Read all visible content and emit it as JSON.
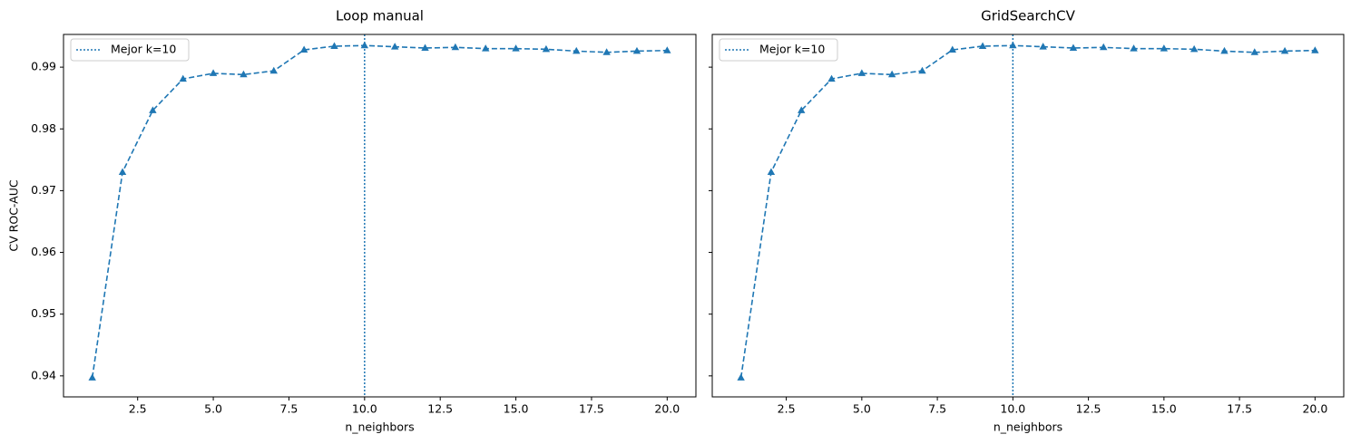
{
  "chart_data": [
    {
      "type": "line",
      "title": "Loop manual",
      "x_label": "n_neighbors",
      "y_label": "CV ROC-AUC",
      "x": [
        1,
        2,
        3,
        4,
        5,
        6,
        7,
        8,
        9,
        10,
        11,
        12,
        13,
        14,
        15,
        16,
        17,
        18,
        19,
        20
      ],
      "values": [
        0.9397,
        0.973,
        0.983,
        0.9881,
        0.989,
        0.9888,
        0.9894,
        0.9928,
        0.9934,
        0.9935,
        0.9933,
        0.9931,
        0.9932,
        0.993,
        0.993,
        0.9929,
        0.9926,
        0.9924,
        0.9926,
        0.9927
      ],
      "color": "#1f77b4",
      "marker": "triangle",
      "line_style": "dashed",
      "xlim": [
        0.05,
        20.95
      ],
      "ylim": [
        0.9366,
        0.9953
      ],
      "xticks": [
        2.5,
        {
          "value": 5,
          "label": "5.0"
        },
        7.5,
        {
          "value": 10,
          "label": "10.0"
        },
        12.5,
        {
          "value": 15,
          "label": "15.0"
        },
        17.5,
        {
          "value": 20,
          "label": "20.0"
        }
      ],
      "yticks": [
        0.94,
        0.95,
        0.96,
        0.97,
        0.98,
        0.99
      ],
      "show_ytick_labels": true,
      "vline": {
        "x": 10,
        "label": "Mejor k=10",
        "color": "#1f77b4",
        "line_style": "dotted"
      },
      "legend_position": "upper left"
    },
    {
      "type": "line",
      "title": "GridSearchCV",
      "x_label": "n_neighbors",
      "x": [
        1,
        2,
        3,
        4,
        5,
        6,
        7,
        8,
        9,
        10,
        11,
        12,
        13,
        14,
        15,
        16,
        17,
        18,
        19,
        20
      ],
      "values": [
        0.9397,
        0.973,
        0.983,
        0.9881,
        0.989,
        0.9888,
        0.9894,
        0.9928,
        0.9934,
        0.9935,
        0.9933,
        0.9931,
        0.9932,
        0.993,
        0.993,
        0.9929,
        0.9926,
        0.9924,
        0.9926,
        0.9927
      ],
      "color": "#1f77b4",
      "marker": "triangle",
      "line_style": "dashed",
      "xlim": [
        0.05,
        20.95
      ],
      "ylim": [
        0.9366,
        0.9953
      ],
      "xticks": [
        2.5,
        {
          "value": 5,
          "label": "5.0"
        },
        7.5,
        {
          "value": 10,
          "label": "10.0"
        },
        12.5,
        {
          "value": 15,
          "label": "15.0"
        },
        17.5,
        {
          "value": 20,
          "label": "20.0"
        }
      ],
      "yticks": [
        0.94,
        0.95,
        0.96,
        0.97,
        0.98,
        0.99
      ],
      "show_ytick_labels": false,
      "vline": {
        "x": 10,
        "label": "Mejor k=10",
        "color": "#1f77b4",
        "line_style": "dotted"
      },
      "legend_position": "upper left"
    }
  ]
}
